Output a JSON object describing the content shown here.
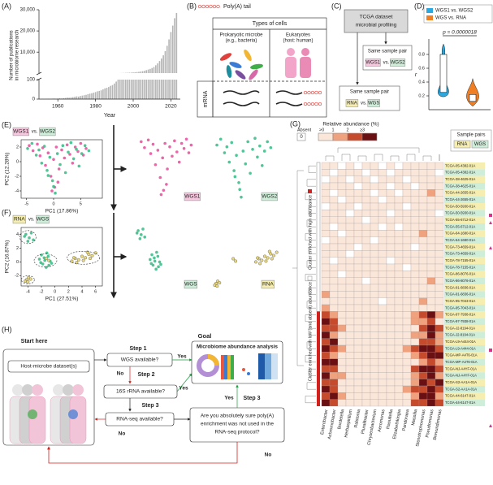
{
  "panel_a": {
    "label": "(A)",
    "type": "bar",
    "color": "#b5b5b5",
    "x": [
      1950,
      1951,
      1952,
      1953,
      1954,
      1955,
      1956,
      1957,
      1958,
      1959,
      1960,
      1961,
      1962,
      1963,
      1964,
      1965,
      1966,
      1967,
      1968,
      1969,
      1970,
      1971,
      1972,
      1973,
      1974,
      1975,
      1976,
      1977,
      1978,
      1979,
      1980,
      1981,
      1982,
      1983,
      1984,
      1985,
      1986,
      1987,
      1988,
      1989,
      1990,
      1991,
      1992,
      1993,
      1994,
      1995,
      1996,
      1997,
      1998,
      1999,
      2000,
      2001,
      2002,
      2003,
      2004,
      2005,
      2006,
      2007,
      2008,
      2009,
      2010,
      2011,
      2012,
      2013,
      2014,
      2015,
      2016,
      2017,
      2018,
      2019,
      2020,
      2021,
      2022,
      2023
    ],
    "values": [
      0,
      0,
      1,
      0,
      1,
      2,
      1,
      2,
      3,
      2,
      3,
      4,
      3,
      5,
      6,
      8,
      7,
      9,
      10,
      12,
      14,
      13,
      16,
      18,
      20,
      22,
      25,
      28,
      30,
      33,
      36,
      40,
      42,
      45,
      50,
      55,
      58,
      62,
      68,
      72,
      80,
      90,
      100,
      120,
      150,
      180,
      220,
      260,
      300,
      360,
      420,
      500,
      600,
      700,
      850,
      1000,
      1200,
      1500,
      1800,
      2100,
      2500,
      3000,
      3800,
      4700,
      5800,
      7000,
      8500,
      10500,
      13000,
      16000,
      19500,
      22500,
      26000,
      28500
    ],
    "xlim": [
      1950,
      2025
    ],
    "xticks": [
      1960,
      1980,
      2000,
      2020
    ],
    "ylim_upper": [
      100,
      30000
    ],
    "yticks_upper": [
      {
        "value": 10000,
        "label": "10,000"
      },
      {
        "value": 20000,
        "label": "20,000"
      },
      {
        "value": 30000,
        "label": "30,000"
      }
    ],
    "ylim_lower": [
      0,
      100
    ],
    "yticks_lower": [
      0,
      100
    ],
    "xlabel": "Year",
    "ylabel": [
      "Number of publications",
      "in microbiome research"
    ]
  },
  "panel_b": {
    "label": "(B)",
    "legend": "Poly(A) tail",
    "title": "Types of cells",
    "prokaryote": [
      "Prokaryotic microbe",
      "(e.g., bacteria)"
    ],
    "eukaryote": [
      "Eukaryotes",
      "(host: human)"
    ],
    "row": "mRNA"
  },
  "panel_c": {
    "label": "(C)",
    "top": [
      "TCGA dataset",
      "microbial profiling"
    ],
    "pair1": {
      "title": "Same sample pair",
      "a": "WGS1",
      "vs": "vs.",
      "b": "WGS2"
    },
    "pair2": {
      "title": "Same sample pair",
      "a": "RNA",
      "vs": "vs.",
      "b": "WGS"
    }
  },
  "panel_d": {
    "label": "(D)",
    "legend": [
      {
        "name": "WGS1 vs. WGS2",
        "color": "#2aa8df"
      },
      {
        "name": "WGS vs. RNA",
        "color": "#f07e22"
      }
    ],
    "pvalue": "p = 0.0000018",
    "ylabel": "r",
    "ylim": [
      0,
      1
    ],
    "yticks": [
      0.2,
      0.4,
      0.6,
      0.8
    ]
  },
  "panel_e": {
    "label": "(E)",
    "type": "scatter",
    "legend": {
      "a": "WGS1",
      "vs": "vs.",
      "b": "WGS2"
    },
    "xlabel": "PC1 (17.86%)",
    "ylabel": "PC2 (12.28%)",
    "xlim": [
      -6,
      9
    ],
    "xticks": [
      -5,
      0,
      5
    ],
    "ylim": [
      -5,
      3
    ],
    "yticks": [
      2,
      0,
      -2,
      -4
    ],
    "series": [
      {
        "name": "WGS1",
        "color": "#e8559f",
        "points": [
          [
            -4.5,
            2.2
          ],
          [
            -3.8,
            1.5
          ],
          [
            -3,
            2.4
          ],
          [
            -2.5,
            0.8
          ],
          [
            -2,
            1.9
          ],
          [
            -1.5,
            -0.5
          ],
          [
            -1,
            1.2
          ],
          [
            -0.5,
            -2
          ],
          [
            0,
            0.3
          ],
          [
            0.2,
            -3.5
          ],
          [
            0.5,
            2
          ],
          [
            1,
            -1
          ],
          [
            1.5,
            1.6
          ],
          [
            2,
            0.5
          ],
          [
            2.5,
            2.3
          ],
          [
            3,
            1
          ],
          [
            3.5,
            -0.2
          ],
          [
            4,
            2
          ],
          [
            4.5,
            1.4
          ],
          [
            5,
            2.5
          ],
          [
            5.5,
            0.9
          ],
          [
            6,
            1.8
          ],
          [
            -0.3,
            -4
          ],
          [
            0.8,
            -2.8
          ]
        ]
      },
      {
        "name": "WGS2",
        "color": "#3dbf8a",
        "points": [
          [
            -4.8,
            1.8
          ],
          [
            -4,
            2.5
          ],
          [
            -3.2,
            0.9
          ],
          [
            -2.7,
            1.6
          ],
          [
            -2.2,
            -0.2
          ],
          [
            -1.7,
            2.1
          ],
          [
            -1.2,
            -1.2
          ],
          [
            -0.7,
            0.6
          ],
          [
            -0.2,
            -2.6
          ],
          [
            0.3,
            -4.3
          ],
          [
            0.7,
            1.1
          ],
          [
            1.2,
            -0.4
          ],
          [
            1.7,
            2.2
          ],
          [
            2.2,
            -1.5
          ],
          [
            2.7,
            1.3
          ],
          [
            3.2,
            2.6
          ],
          [
            3.7,
            0.4
          ],
          [
            4.2,
            1.7
          ],
          [
            4.7,
            -0.6
          ],
          [
            5.2,
            1.1
          ],
          [
            5.8,
            2.2
          ],
          [
            6.5,
            1.5
          ],
          [
            0,
            -3.4
          ],
          [
            -1,
            -1.9
          ]
        ]
      }
    ]
  },
  "panel_f": {
    "label": "(F)",
    "type": "scatter",
    "legend": {
      "a": "RNA",
      "vs": "vs.",
      "b": "WGS"
    },
    "xlabel": "PC1 (27.51%)",
    "ylabel": "PC2 (16.87%)",
    "xlim": [
      -5,
      7
    ],
    "xticks": [
      -4,
      -2,
      0,
      2,
      4,
      6
    ],
    "ylim": [
      -3.5,
      5
    ],
    "yticks": [
      4,
      2,
      0,
      -2
    ],
    "series": [
      {
        "name": "WGS",
        "color": "#3dbf8a",
        "points": [
          [
            -4.3,
            4
          ],
          [
            -3.8,
            3.5
          ],
          [
            -4,
            3
          ],
          [
            -3.5,
            4.2
          ],
          [
            -3.2,
            3.2
          ],
          [
            -4.5,
            3.7
          ],
          [
            -2,
            1
          ],
          [
            -1.5,
            0.2
          ],
          [
            -1.8,
            -0.3
          ],
          [
            -1,
            0.8
          ],
          [
            -0.7,
            0.1
          ],
          [
            -1.2,
            1.3
          ],
          [
            -2.3,
            0.4
          ],
          [
            -0.5,
            -0.2
          ],
          [
            -1.6,
            0.6
          ],
          [
            -0.9,
            -0.5
          ],
          [
            -2.1,
            -0.1
          ],
          [
            -1.3,
            -0.8
          ]
        ]
      },
      {
        "name": "RNA",
        "color": "#ead66a",
        "points": [
          [
            -4.2,
            -2.6
          ],
          [
            -3.9,
            -2.3
          ],
          [
            -4.4,
            -2.8
          ],
          [
            -3.6,
            -2.5
          ],
          [
            -4,
            -2.9
          ],
          [
            2.5,
            0.1
          ],
          [
            3,
            0.5
          ],
          [
            3.5,
            0.3
          ],
          [
            4,
            0.8
          ],
          [
            4.5,
            0.6
          ],
          [
            5,
            1.1
          ],
          [
            5.5,
            0.9
          ],
          [
            6,
            1.3
          ],
          [
            3.2,
            -0.1
          ],
          [
            4.2,
            0.2
          ],
          [
            5.2,
            0.5
          ],
          [
            2.8,
            0.6
          ],
          [
            4.8,
            1.4
          ],
          [
            -1.3,
            0.5
          ],
          [
            -0.9,
            0.2
          ]
        ]
      }
    ]
  },
  "panel_g": {
    "label": "(G)",
    "type": "heatmap",
    "colorbar_title": "Relative abundance (%)",
    "absent": "Absent",
    "absent_box": "0",
    "levels": [
      ">0",
      "1",
      "2",
      "≥3"
    ],
    "colors": [
      "#ffffff",
      "#fbe6da",
      "#f0a27f",
      "#c64a2c",
      "#6a0f12"
    ],
    "pairs_title": "Sample pairs",
    "pairs": [
      {
        "name": "RNA",
        "color": "#f6eeb0"
      },
      {
        "name": "WGS",
        "color": "#cfeed9"
      }
    ],
    "cluster_labels": [
      "Cluster enriched with high abundance",
      "Cluster enriched with low (and absent) abundance"
    ],
    "columns": [
      "Enterobacter",
      "Achromobacter",
      "Bordetella",
      "Herbaspirillum",
      "Ralstonia",
      "Pluralibacter",
      "Chryseobacterium",
      "Aeromonas",
      "Raoultella",
      "Elizabethkingia",
      "Pandoraea",
      "Massilia",
      "Stenotrophomonas",
      "Pseudomonas",
      "Brevundimonas"
    ],
    "rows": [
      "TCGA-05-4382-01A",
      "TCGA-05-4382-01A",
      "TCGA-38-4625-01A",
      "TCGA-38-4625-01A",
      "TCGA-44-2655-01A",
      "TCGA-44-2655-01A",
      "TCGA-50-5930-01A",
      "TCGA-50-5930-01A",
      "TCGA-55-6712-01A",
      "TCGA-55-6712-01A",
      "TCGA-64-1680-01A",
      "TCGA-64-1680-01A",
      "TCGA-73-4659-01A",
      "TCGA-73-4659-01A",
      "TCGA-78-7155-01A",
      "TCGA-78-7155-01A",
      "TCGA-86-8076-01A",
      "TCGA-86-8076-01A",
      "TCGA-91-6836-01A",
      "TCGA-91-6836-01A",
      "TCGA-95-7043-01A",
      "TCGA-95-7043-01A",
      "TCGA-97-7938-01A",
      "TCGA-97-7938-01A",
      "TCGA-J2-8194-01A",
      "TCGA-J2-8194-01A",
      "TCGA-L9-A444-01A",
      "TCGA-L9-A444-01A",
      "TCGA-MP-A4T6-01A",
      "TCGA-MP-A4T6-01A",
      "TCGA-NJ-A4YF-01A",
      "TCGA-NJ-A4YF-01A",
      "TCGA-S2-AA1A-01A",
      "TCGA-S2-AA1A-01A",
      "TCGA-44-6147-01A",
      "TCGA-44-6147-01A"
    ],
    "values": [
      [
        1,
        1,
        0,
        1,
        0,
        1,
        1,
        0,
        1,
        0,
        1,
        1,
        1,
        1,
        1
      ],
      [
        1,
        0,
        1,
        1,
        1,
        0,
        1,
        1,
        0,
        1,
        1,
        1,
        1,
        1,
        0
      ],
      [
        0,
        1,
        1,
        0,
        1,
        1,
        0,
        1,
        1,
        1,
        0,
        1,
        1,
        1,
        1
      ],
      [
        1,
        1,
        1,
        1,
        0,
        1,
        1,
        1,
        0,
        1,
        1,
        0,
        1,
        1,
        1
      ],
      [
        1,
        0,
        1,
        1,
        1,
        1,
        0,
        1,
        1,
        0,
        1,
        1,
        1,
        2,
        1
      ],
      [
        1,
        1,
        0,
        1,
        1,
        1,
        1,
        0,
        1,
        1,
        1,
        1,
        1,
        1,
        1
      ],
      [
        0,
        1,
        1,
        1,
        0,
        1,
        1,
        1,
        1,
        1,
        0,
        1,
        1,
        1,
        1
      ],
      [
        1,
        1,
        1,
        0,
        1,
        1,
        1,
        1,
        0,
        1,
        1,
        1,
        1,
        1,
        0
      ],
      [
        1,
        1,
        1,
        1,
        1,
        0,
        1,
        1,
        1,
        1,
        1,
        1,
        1,
        1,
        1
      ],
      [
        1,
        0,
        1,
        1,
        1,
        1,
        1,
        0,
        1,
        0,
        1,
        1,
        1,
        1,
        1
      ],
      [
        1,
        1,
        0,
        1,
        1,
        1,
        1,
        1,
        1,
        1,
        1,
        1,
        2,
        1,
        1
      ],
      [
        0,
        1,
        1,
        1,
        1,
        1,
        0,
        1,
        1,
        1,
        1,
        1,
        1,
        1,
        1
      ],
      [
        1,
        1,
        1,
        1,
        0,
        1,
        1,
        1,
        1,
        1,
        1,
        0,
        1,
        1,
        1
      ],
      [
        1,
        1,
        1,
        0,
        1,
        1,
        1,
        1,
        1,
        1,
        1,
        1,
        1,
        1,
        1
      ],
      [
        1,
        0,
        1,
        1,
        1,
        1,
        1,
        1,
        0,
        1,
        1,
        1,
        1,
        1,
        1
      ],
      [
        1,
        1,
        1,
        1,
        1,
        1,
        1,
        1,
        1,
        1,
        0,
        1,
        1,
        1,
        1
      ],
      [
        1,
        1,
        0,
        1,
        1,
        1,
        1,
        1,
        1,
        1,
        1,
        1,
        1,
        1,
        1
      ],
      [
        1,
        1,
        1,
        1,
        1,
        0,
        1,
        1,
        1,
        1,
        1,
        1,
        1,
        2,
        1
      ],
      [
        1,
        1,
        1,
        1,
        1,
        1,
        1,
        1,
        1,
        1,
        1,
        1,
        1,
        1,
        1
      ],
      [
        2,
        1,
        1,
        1,
        1,
        1,
        1,
        1,
        1,
        1,
        1,
        1,
        1,
        1,
        1
      ],
      [
        1,
        1,
        1,
        1,
        1,
        1,
        1,
        0,
        1,
        1,
        1,
        1,
        2,
        1,
        1
      ],
      [
        2,
        1,
        1,
        1,
        1,
        1,
        1,
        1,
        1,
        1,
        1,
        1,
        1,
        1,
        1
      ],
      [
        3,
        2,
        1,
        1,
        1,
        1,
        1,
        1,
        1,
        1,
        1,
        2,
        3,
        4,
        2
      ],
      [
        4,
        3,
        1,
        1,
        1,
        1,
        1,
        1,
        1,
        1,
        1,
        2,
        2,
        3,
        1
      ],
      [
        3,
        3,
        2,
        1,
        1,
        1,
        1,
        1,
        1,
        1,
        1,
        1,
        3,
        4,
        3
      ],
      [
        4,
        2,
        1,
        1,
        1,
        1,
        1,
        1,
        1,
        1,
        1,
        2,
        2,
        4,
        2
      ],
      [
        3,
        4,
        1,
        1,
        1,
        1,
        1,
        1,
        1,
        1,
        1,
        1,
        3,
        3,
        2
      ],
      [
        4,
        3,
        2,
        1,
        1,
        1,
        1,
        1,
        1,
        1,
        2,
        3,
        4,
        4,
        3
      ],
      [
        3,
        2,
        1,
        1,
        1,
        1,
        1,
        1,
        1,
        1,
        1,
        2,
        3,
        4,
        4
      ],
      [
        4,
        4,
        1,
        1,
        1,
        1,
        1,
        1,
        1,
        1,
        1,
        1,
        2,
        3,
        2
      ],
      [
        3,
        3,
        1,
        1,
        1,
        1,
        1,
        1,
        1,
        1,
        1,
        3,
        4,
        4,
        3
      ],
      [
        4,
        2,
        2,
        1,
        1,
        1,
        1,
        1,
        1,
        1,
        1,
        2,
        3,
        4,
        2
      ],
      [
        3,
        3,
        1,
        1,
        1,
        1,
        1,
        1,
        1,
        1,
        1,
        2,
        4,
        3,
        4
      ],
      [
        4,
        3,
        1,
        1,
        1,
        1,
        1,
        1,
        1,
        1,
        2,
        3,
        3,
        4,
        3
      ],
      [
        3,
        4,
        2,
        1,
        1,
        1,
        1,
        1,
        1,
        1,
        1,
        2,
        4,
        4,
        2
      ],
      [
        4,
        3,
        1,
        1,
        1,
        1,
        1,
        1,
        1,
        1,
        1,
        3,
        3,
        4,
        3
      ]
    ]
  },
  "panel_h": {
    "label": "(H)",
    "start": "Start here",
    "dataset": "Host-microbe dataset(s)",
    "step1": "Step 1",
    "q1": "WGS available?",
    "step2": "Step 2",
    "q2": "16S rRNA available?",
    "step3a": "Step 3",
    "q3": "RNA-seq available?",
    "goal": "Goal",
    "goal_box": "Microbiome abundance analysis",
    "q4": [
      "Are you absolutely sure poly(A)",
      "enrichment was not used in the",
      "RNA-seq protocol?"
    ],
    "step3b": "Step 3",
    "yes": [
      "Yes",
      "Yes",
      "Yes"
    ],
    "no": [
      "No",
      "No",
      "No"
    ]
  }
}
